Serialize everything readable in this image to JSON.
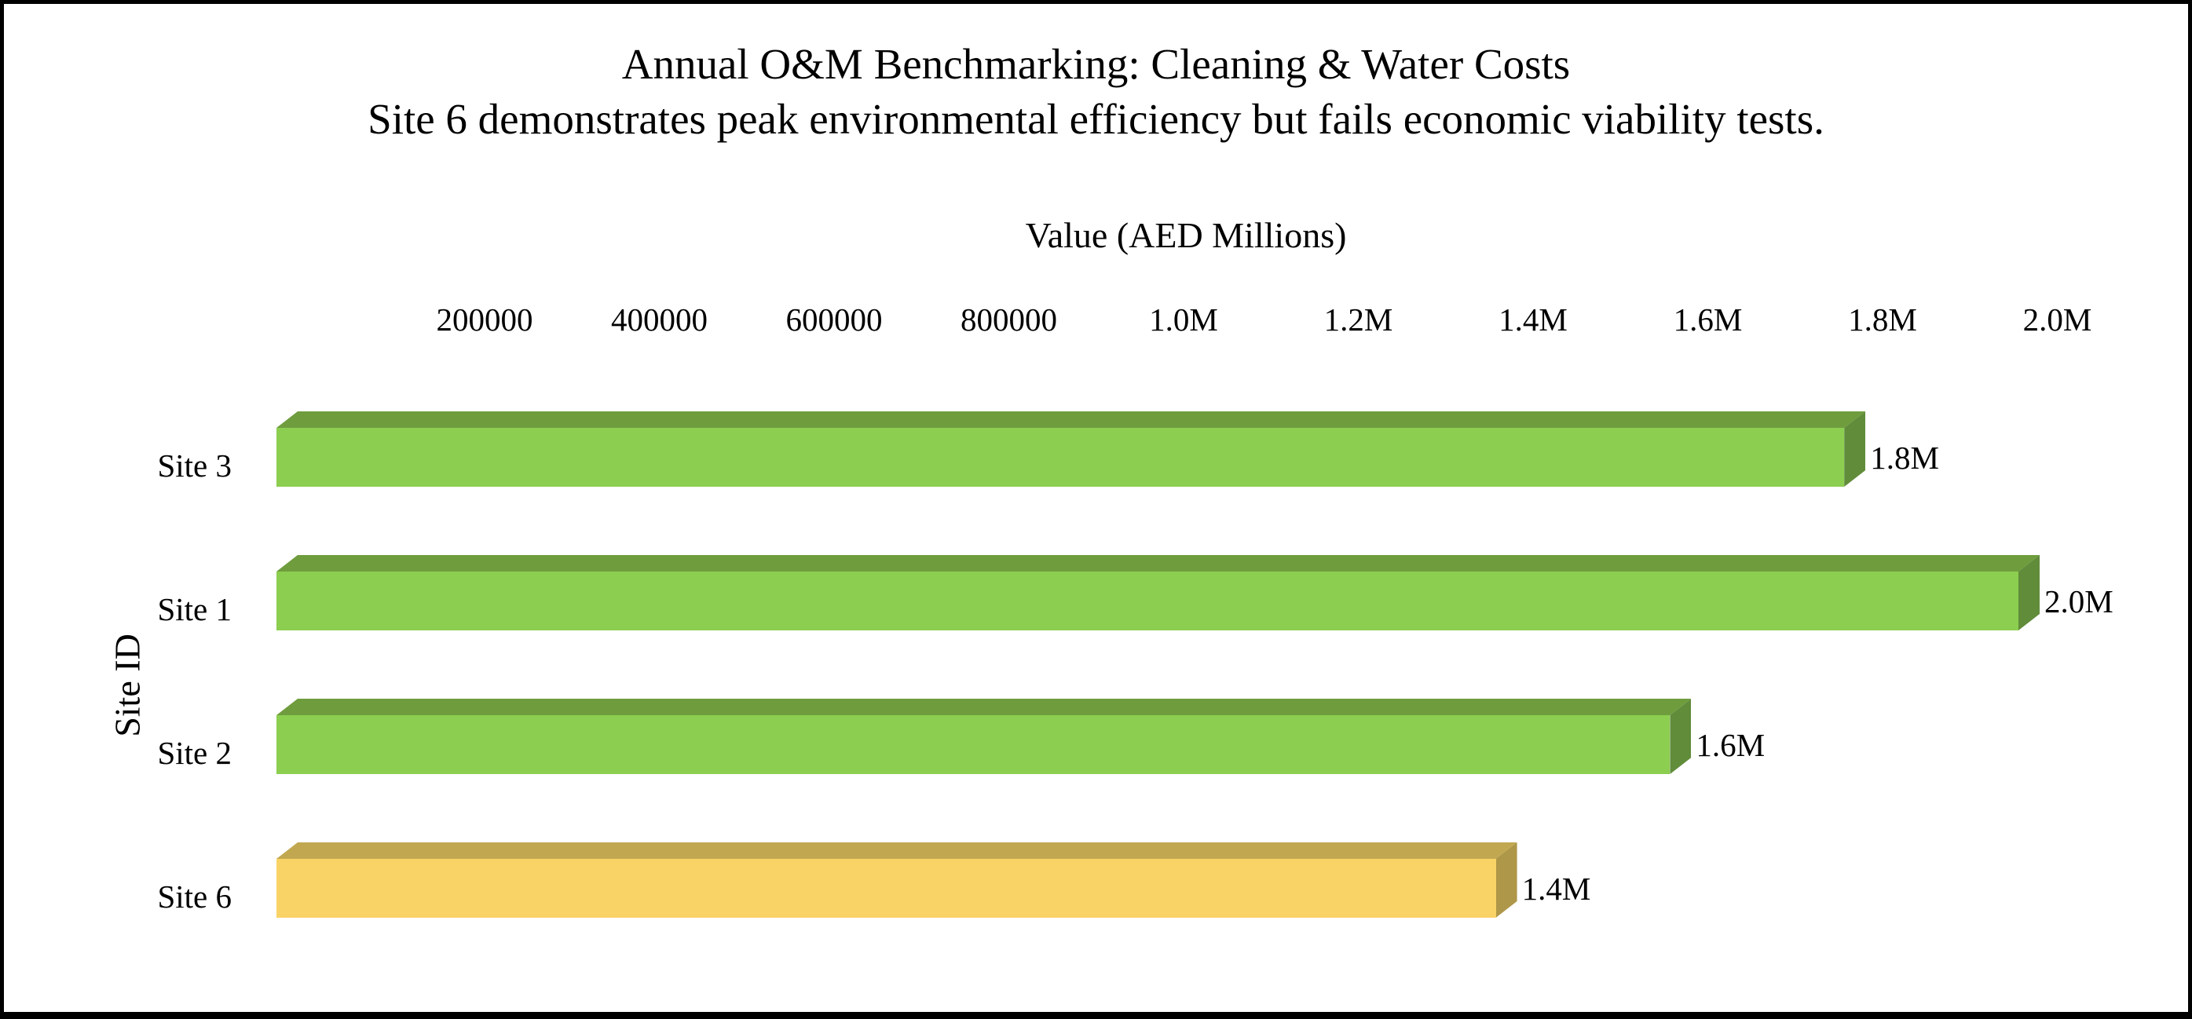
{
  "frame": {
    "background": "#ffffff",
    "border_color": "#000000"
  },
  "title": {
    "line1": "Annual O&M Benchmarking: Cleaning & Water Costs",
    "line2": "Site 6 demonstrates peak environmental efficiency but fails economic viability tests."
  },
  "axis": {
    "x_title": "Value (AED Millions)",
    "y_title": "Site ID",
    "ticks": [
      {
        "label": "200000",
        "value": 200000
      },
      {
        "label": "400000",
        "value": 400000
      },
      {
        "label": "600000",
        "value": 600000
      },
      {
        "label": "800000",
        "value": 800000
      },
      {
        "label": "1.0M",
        "value": 1000000
      },
      {
        "label": "1.2M",
        "value": 1200000
      },
      {
        "label": "1.4M",
        "value": 1400000
      },
      {
        "label": "1.6M",
        "value": 1600000
      },
      {
        "label": "1.8M",
        "value": 1800000
      },
      {
        "label": "2.0M",
        "value": 2000000
      }
    ]
  },
  "chart_data": {
    "type": "bar",
    "orientation": "horizontal",
    "style": "3d",
    "title": "Annual O&M Benchmarking: Cleaning & Water Costs",
    "subtitle": "Site 6 demonstrates peak environmental efficiency but fails economic viability tests.",
    "xlabel": "Value (AED Millions)",
    "ylabel": "Site ID",
    "xlim": [
      0,
      2000000
    ],
    "grid": false,
    "legend": false,
    "categories": [
      "Site 3",
      "Site 1",
      "Site 2",
      "Site 6"
    ],
    "values": [
      1800000,
      2000000,
      1600000,
      1400000
    ],
    "data_labels": [
      "1.8M",
      "2.0M",
      "1.6M",
      "1.4M"
    ],
    "bar_colors": [
      {
        "front": "#8CCE50",
        "top": "#6F9D3E",
        "side": "#618C3A"
      },
      {
        "front": "#8CCE50",
        "top": "#6F9D3E",
        "side": "#618C3A"
      },
      {
        "front": "#8CCE50",
        "top": "#6F9D3E",
        "side": "#618C3A"
      },
      {
        "front": "#FAD366",
        "top": "#C1A850",
        "side": "#AE9748"
      }
    ],
    "text_color": "#000000"
  }
}
